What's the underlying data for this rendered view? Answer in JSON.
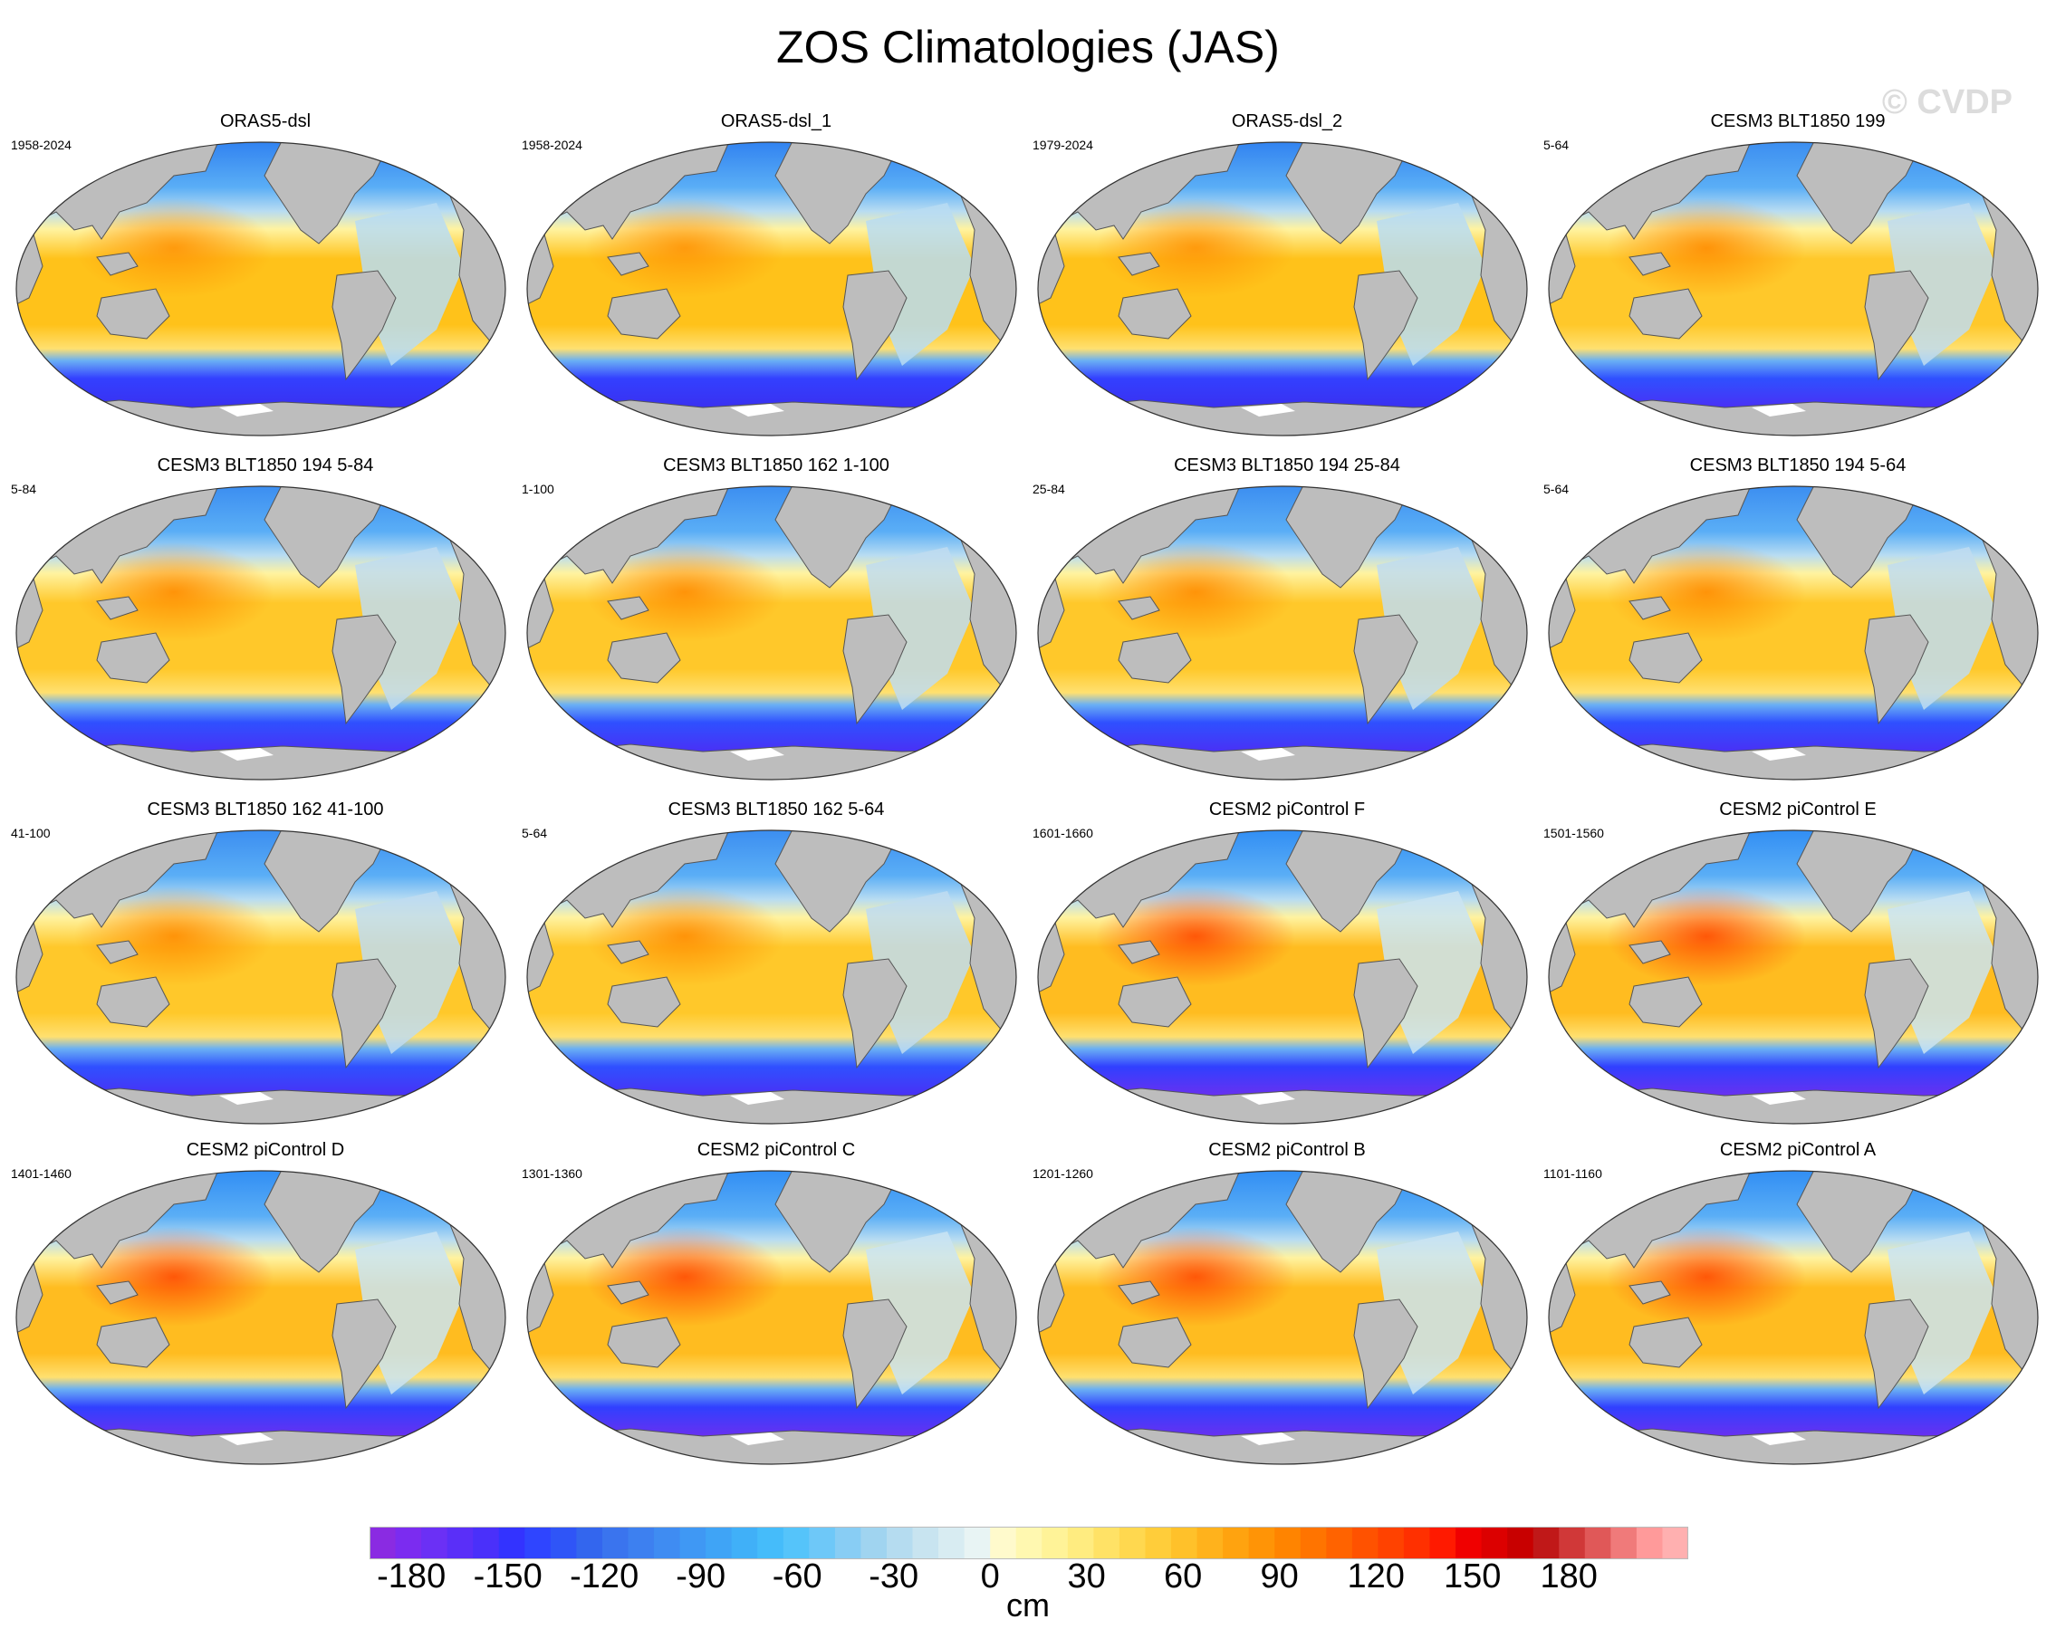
{
  "title": "ZOS Climatologies (JAS)",
  "watermark": "© CVDP",
  "colors": {
    "land": "#bdbdbd",
    "coast": "#555555",
    "antarctic_ice": "#ffffff"
  },
  "panels": [
    {
      "title": "ORAS5-dsl",
      "period": "1958-2024",
      "style": "obs"
    },
    {
      "title": "ORAS5-dsl_1",
      "period": "1958-2024",
      "style": "obs"
    },
    {
      "title": "ORAS5-dsl_2",
      "period": "1979-2024",
      "style": "obs"
    },
    {
      "title": "CESM3 BLT1850 199",
      "period": "5-64",
      "style": "cesm3"
    },
    {
      "title": "CESM3 BLT1850 194 5-84",
      "period": "5-84",
      "style": "cesm3"
    },
    {
      "title": "CESM3 BLT1850 162 1-100",
      "period": "1-100",
      "style": "cesm3"
    },
    {
      "title": "CESM3 BLT1850 194 25-84",
      "period": "25-84",
      "style": "cesm3"
    },
    {
      "title": "CESM3 BLT1850 194 5-64",
      "period": "5-64",
      "style": "cesm3"
    },
    {
      "title": "CESM3 BLT1850 162 41-100",
      "period": "41-100",
      "style": "cesm3"
    },
    {
      "title": "CESM3 BLT1850 162 5-64",
      "period": "5-64",
      "style": "cesm3"
    },
    {
      "title": "CESM2 piControl F",
      "period": "1601-1660",
      "style": "cesm2"
    },
    {
      "title": "CESM2 piControl E",
      "period": "1501-1560",
      "style": "cesm2"
    },
    {
      "title": "CESM2 piControl D",
      "period": "1401-1460",
      "style": "cesm2"
    },
    {
      "title": "CESM2 piControl C",
      "period": "1301-1360",
      "style": "cesm2"
    },
    {
      "title": "CESM2 piControl B",
      "period": "1201-1260",
      "style": "cesm2"
    },
    {
      "title": "CESM2 piControl A",
      "period": "1101-1160",
      "style": "cesm2"
    }
  ],
  "colorbar": {
    "units": "cm",
    "tick_labels": [
      "-180",
      "-150",
      "-120",
      "-90",
      "-60",
      "-30",
      "0",
      "30",
      "60",
      "90",
      "120",
      "150",
      "180"
    ],
    "colors": [
      "#8a2be2",
      "#7b2cf0",
      "#6b30f5",
      "#5a2ff8",
      "#4a30fa",
      "#3333ff",
      "#2f45ff",
      "#2f55f7",
      "#3366ee",
      "#3a74ee",
      "#3d80f0",
      "#3f8cf2",
      "#3f98f4",
      "#3fa4f6",
      "#40b0f8",
      "#45bcfa",
      "#55c4fa",
      "#6ec8f8",
      "#88cdf4",
      "#a0d4f0",
      "#b5dcf0",
      "#c8e4f0",
      "#d8ecf2",
      "#e8f4f4",
      "#fffacc",
      "#fff8b0",
      "#fff398",
      "#ffec80",
      "#ffe266",
      "#ffd84f",
      "#ffcd3a",
      "#ffc12a",
      "#ffb21c",
      "#ffa30f",
      "#ff9406",
      "#ff8400",
      "#ff7400",
      "#ff6300",
      "#ff5200",
      "#ff4200",
      "#ff3000",
      "#ff1a00",
      "#f00000",
      "#dc0000",
      "#c80000",
      "#c01818",
      "#d03838",
      "#e05858",
      "#f07a7a",
      "#ff9a9a",
      "#ffb0b0"
    ]
  }
}
